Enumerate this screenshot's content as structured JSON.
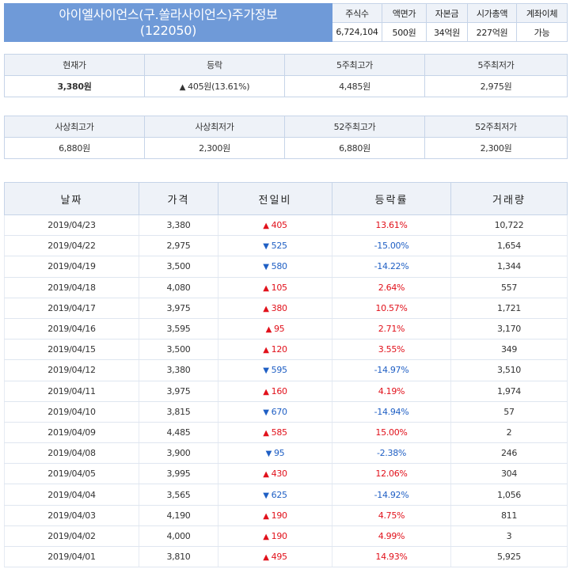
{
  "header": {
    "title_line1": "아이엘사이언스(구.쏠라사이언스)주가정보",
    "title_line2": "(122050)",
    "labels": [
      "주식수",
      "액면가",
      "자본금",
      "시가총액",
      "계좌이체"
    ],
    "values": [
      "6,724,104",
      "500원",
      "34억원",
      "227억원",
      "가능"
    ]
  },
  "summary1": {
    "labels": [
      "현재가",
      "등락",
      "5주최고가",
      "5주최저가"
    ],
    "current_price": "3,380원",
    "change_arrow": "▲",
    "change_value": "405원(13.61%)",
    "high_5w": "4,485원",
    "low_5w": "2,975원"
  },
  "summary2": {
    "labels": [
      "사상최고가",
      "사상최저가",
      "52주최고가",
      "52주최저가"
    ],
    "values": [
      "6,880원",
      "2,300원",
      "6,880원",
      "2,300원"
    ]
  },
  "history": {
    "columns": [
      "날짜",
      "가격",
      "전일비",
      "등락률",
      "거래량"
    ],
    "rows": [
      {
        "date": "2019/04/23",
        "price": "3,380",
        "dir": "up",
        "change": "405",
        "rate": "13.61%",
        "volume": "10,722"
      },
      {
        "date": "2019/04/22",
        "price": "2,975",
        "dir": "down",
        "change": "525",
        "rate": "-15.00%",
        "volume": "1,654"
      },
      {
        "date": "2019/04/19",
        "price": "3,500",
        "dir": "down",
        "change": "580",
        "rate": "-14.22%",
        "volume": "1,344"
      },
      {
        "date": "2019/04/18",
        "price": "4,080",
        "dir": "up",
        "change": "105",
        "rate": "2.64%",
        "volume": "557"
      },
      {
        "date": "2019/04/17",
        "price": "3,975",
        "dir": "up",
        "change": "380",
        "rate": "10.57%",
        "volume": "1,721"
      },
      {
        "date": "2019/04/16",
        "price": "3,595",
        "dir": "up",
        "change": "95",
        "rate": "2.71%",
        "volume": "3,170"
      },
      {
        "date": "2019/04/15",
        "price": "3,500",
        "dir": "up",
        "change": "120",
        "rate": "3.55%",
        "volume": "349"
      },
      {
        "date": "2019/04/12",
        "price": "3,380",
        "dir": "down",
        "change": "595",
        "rate": "-14.97%",
        "volume": "3,510"
      },
      {
        "date": "2019/04/11",
        "price": "3,975",
        "dir": "up",
        "change": "160",
        "rate": "4.19%",
        "volume": "1,974"
      },
      {
        "date": "2019/04/10",
        "price": "3,815",
        "dir": "down",
        "change": "670",
        "rate": "-14.94%",
        "volume": "57"
      },
      {
        "date": "2019/04/09",
        "price": "4,485",
        "dir": "up",
        "change": "585",
        "rate": "15.00%",
        "volume": "2"
      },
      {
        "date": "2019/04/08",
        "price": "3,900",
        "dir": "down",
        "change": "95",
        "rate": "-2.38%",
        "volume": "246"
      },
      {
        "date": "2019/04/05",
        "price": "3,995",
        "dir": "up",
        "change": "430",
        "rate": "12.06%",
        "volume": "304"
      },
      {
        "date": "2019/04/04",
        "price": "3,565",
        "dir": "down",
        "change": "625",
        "rate": "-14.92%",
        "volume": "1,056"
      },
      {
        "date": "2019/04/03",
        "price": "4,190",
        "dir": "up",
        "change": "190",
        "rate": "4.75%",
        "volume": "811"
      },
      {
        "date": "2019/04/02",
        "price": "4,000",
        "dir": "up",
        "change": "190",
        "rate": "4.99%",
        "volume": "3"
      },
      {
        "date": "2019/04/01",
        "price": "3,810",
        "dir": "up",
        "change": "495",
        "rate": "14.93%",
        "volume": "5,925"
      }
    ]
  },
  "colors": {
    "title_bg": "#6f9ad8",
    "label_bg": "#eef2f8",
    "border": "#c6d4e8",
    "up": "#e1111b",
    "down": "#1f5fc4"
  },
  "arrows": {
    "up": "▲",
    "down": "▼"
  }
}
